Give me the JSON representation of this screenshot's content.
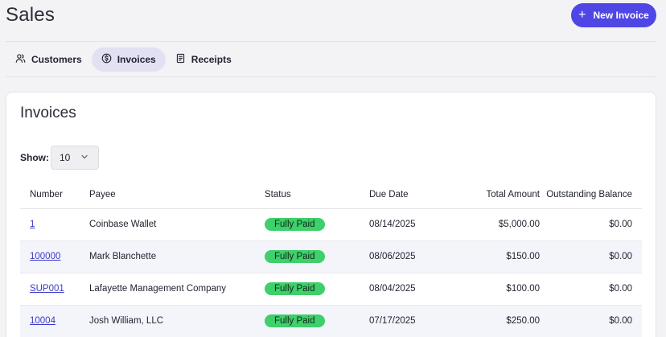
{
  "header": {
    "title": "Sales",
    "new_invoice_label": "New Invoice"
  },
  "tabs": [
    {
      "label": "Customers",
      "icon": "users-icon",
      "active": false
    },
    {
      "label": "Invoices",
      "icon": "dollar-circle-icon",
      "active": true
    },
    {
      "label": "Receipts",
      "icon": "receipt-icon",
      "active": false
    }
  ],
  "invoices": {
    "title": "Invoices",
    "show_label": "Show:",
    "page_size": "10",
    "columns": [
      "Number",
      "Payee",
      "Status",
      "Due Date",
      "Total Amount",
      "Outstanding Balance"
    ],
    "rows": [
      {
        "number": "1",
        "payee": "Coinbase Wallet",
        "status": "Fully Paid",
        "due": "08/14/2025",
        "total": "$5,000.00",
        "outstanding": "$0.00"
      },
      {
        "number": "100000",
        "payee": "Mark Blanchette",
        "status": "Fully Paid",
        "due": "08/06/2025",
        "total": "$150.00",
        "outstanding": "$0.00"
      },
      {
        "number": "SUP001",
        "payee": "Lafayette Management Company",
        "status": "Fully Paid",
        "due": "08/04/2025",
        "total": "$100.00",
        "outstanding": "$0.00"
      },
      {
        "number": "10004",
        "payee": "Josh William, LLC",
        "status": "Fully Paid",
        "due": "07/17/2025",
        "total": "$250.00",
        "outstanding": "$0.00"
      }
    ]
  },
  "colors": {
    "accent": "#4f46e5",
    "active_tab_bg": "#e2e1f4",
    "paid_badge": "#3fcf6b",
    "link": "#3b3ac9"
  }
}
